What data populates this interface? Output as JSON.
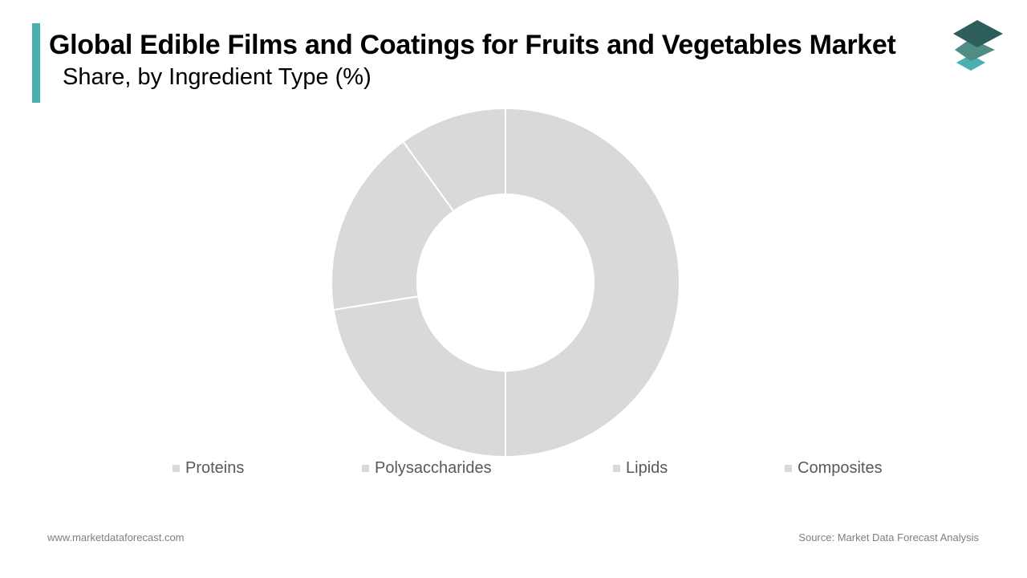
{
  "header": {
    "title": "Global Edible Films and Coatings for Fruits and Vegetables Market",
    "subtitle": "Share, by Ingredient Type (%)"
  },
  "colors": {
    "accent": "#4BAFAE",
    "slice": "#D9D9D9",
    "slice_border": "#FFFFFF",
    "legend_text": "#595959",
    "footer_text": "#7F7F7F",
    "logo_dark": "#2E5E5A",
    "logo_mid": "#4E8C84",
    "logo_light": "#4BAFAE"
  },
  "logo": {
    "icon": "stacked-layers-icon"
  },
  "chart_data": {
    "type": "donut",
    "title": "Global Edible Films and Coatings for Fruits and Vegetables Market",
    "subtitle": "Share, by Ingredient Type (%)",
    "legend_position": "bottom",
    "categories": [
      "Proteins",
      "Polysaccharides",
      "Lipids",
      "Composites"
    ],
    "values": [
      50,
      22.5,
      17.5,
      10
    ],
    "unit": "%"
  },
  "footer": {
    "website": "www.marketdataforecast.com",
    "source": "Source: Market Data Forecast Analysis"
  }
}
